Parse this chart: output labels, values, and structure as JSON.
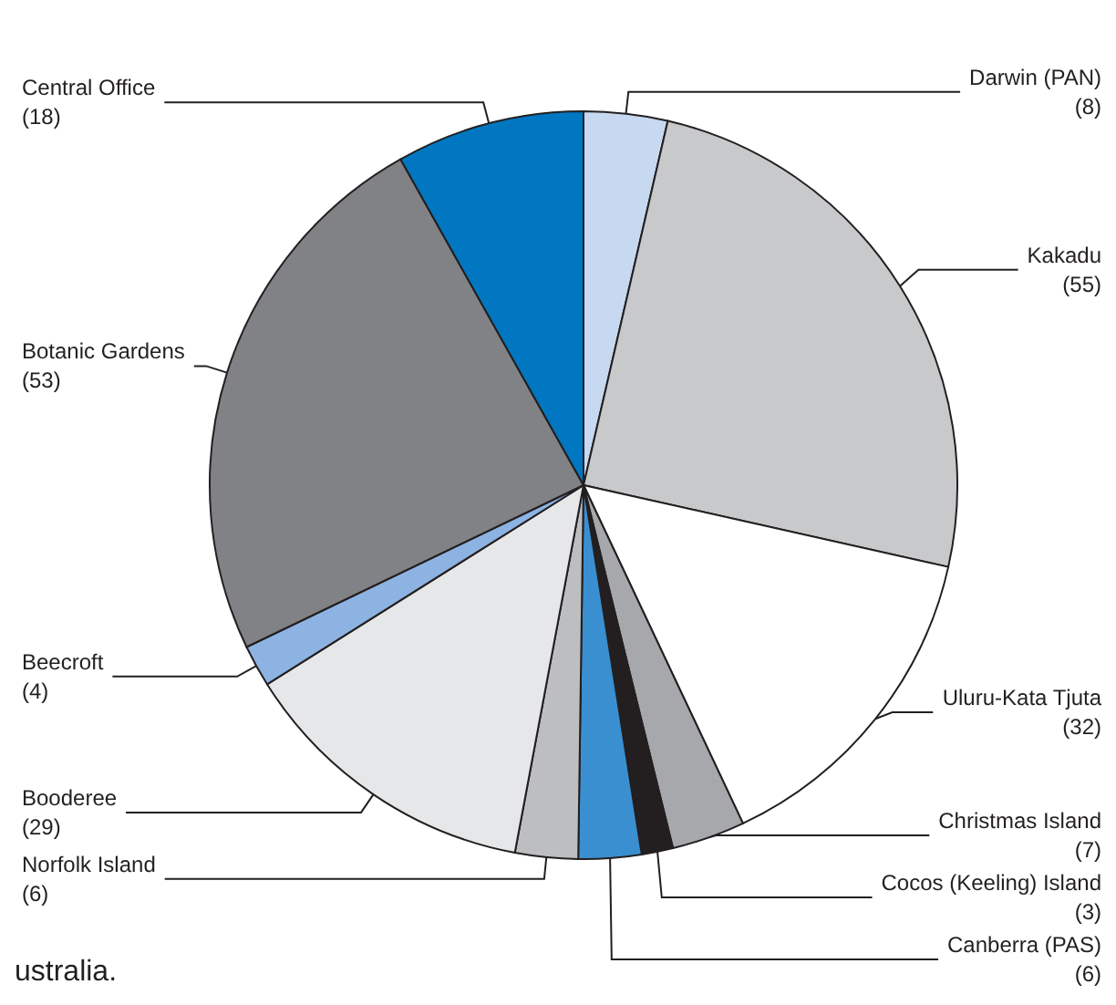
{
  "chart_data": {
    "type": "pie",
    "categories": [
      "Darwin (PAN)",
      "Kakadu",
      "Uluru-Kata Tjuta",
      "Christmas Island",
      "Cocos (Keeling) Island",
      "Canberra (PAS)",
      "Norfolk Island",
      "Booderee",
      "Beecroft",
      "Botanic Gardens",
      "Central Office"
    ],
    "values": [
      8,
      55,
      32,
      7,
      3,
      6,
      6,
      29,
      4,
      53,
      18
    ],
    "colors": [
      "#c6d9f0",
      "#c8c9ca",
      "#ffffff",
      "#a6a8ab",
      "#231f20",
      "#3a8fd1",
      "#bcbec0",
      "#e6e7e8",
      "#8db3e2",
      "#808285",
      "#0077c0"
    ],
    "value_labels": [
      "(8)",
      "(55)",
      "(32)",
      "(7)",
      "(3)",
      "(6)",
      "(6)",
      "(29)",
      "(4)",
      "(53)",
      "(18)"
    ],
    "legend": false,
    "annotations": [
      "ustralia."
    ]
  }
}
